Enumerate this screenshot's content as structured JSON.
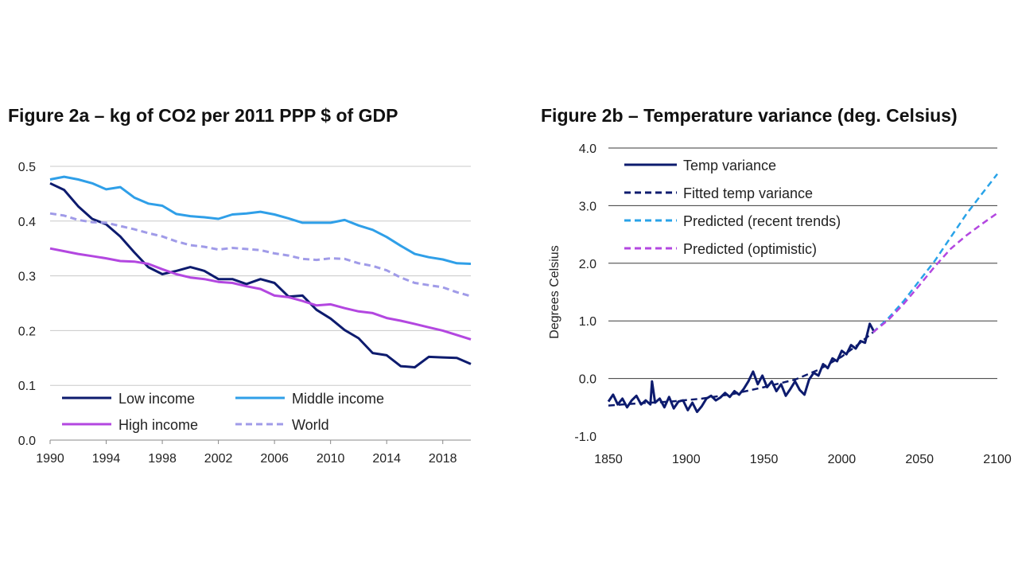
{
  "chart_data": [
    {
      "type": "line",
      "title": "Figure 2a – kg of CO2 per 2011 PPP $ of GDP",
      "xlabel": "",
      "ylabel": "",
      "xlim": [
        1990,
        2020
      ],
      "ylim": [
        0.0,
        0.5
      ],
      "x_ticks": [
        "1990",
        "1994",
        "1998",
        "2002",
        "2006",
        "2010",
        "2014",
        "2018"
      ],
      "y_ticks": [
        "0.0",
        "0.1",
        "0.2",
        "0.3",
        "0.4",
        "0.5"
      ],
      "grid": "horizontal",
      "legend_position": "bottom",
      "x": [
        1990,
        1991,
        1992,
        1993,
        1994,
        1995,
        1996,
        1997,
        1998,
        1999,
        2000,
        2001,
        2002,
        2003,
        2004,
        2005,
        2006,
        2007,
        2008,
        2009,
        2010,
        2011,
        2012,
        2013,
        2014,
        2015,
        2016,
        2017,
        2018,
        2019,
        2020
      ],
      "series": [
        {
          "name": "Low income",
          "color": "#0d1b6e",
          "dash": "solid",
          "values": [
            0.469,
            0.457,
            0.427,
            0.404,
            0.394,
            0.372,
            0.343,
            0.316,
            0.303,
            0.309,
            0.316,
            0.309,
            0.294,
            0.294,
            0.285,
            0.294,
            0.287,
            0.262,
            0.264,
            0.238,
            0.222,
            0.201,
            0.186,
            0.159,
            0.155,
            0.135,
            0.133,
            0.152,
            0.151,
            0.15,
            0.139
          ]
        },
        {
          "name": "Middle income",
          "color": "#2f9fe8",
          "dash": "solid",
          "values": [
            0.476,
            0.481,
            0.476,
            0.469,
            0.458,
            0.462,
            0.443,
            0.432,
            0.428,
            0.413,
            0.409,
            0.407,
            0.404,
            0.412,
            0.414,
            0.417,
            0.412,
            0.405,
            0.397,
            0.397,
            0.397,
            0.402,
            0.392,
            0.384,
            0.371,
            0.355,
            0.34,
            0.334,
            0.33,
            0.323,
            0.322
          ]
        },
        {
          "name": "High income",
          "color": "#b347e0",
          "dash": "solid",
          "values": [
            0.35,
            0.345,
            0.34,
            0.336,
            0.332,
            0.327,
            0.326,
            0.322,
            0.312,
            0.303,
            0.297,
            0.294,
            0.289,
            0.287,
            0.281,
            0.276,
            0.264,
            0.261,
            0.254,
            0.246,
            0.248,
            0.241,
            0.235,
            0.232,
            0.223,
            0.218,
            0.212,
            0.206,
            0.2,
            0.192,
            0.184
          ]
        },
        {
          "name": "World",
          "color": "#a09be8",
          "dash": "dashed",
          "values": [
            0.414,
            0.41,
            0.402,
            0.398,
            0.397,
            0.391,
            0.385,
            0.378,
            0.372,
            0.363,
            0.356,
            0.353,
            0.348,
            0.351,
            0.349,
            0.347,
            0.341,
            0.337,
            0.331,
            0.329,
            0.332,
            0.331,
            0.323,
            0.318,
            0.31,
            0.297,
            0.287,
            0.283,
            0.279,
            0.27,
            0.263
          ]
        }
      ]
    },
    {
      "type": "line",
      "title": "Figure 2b – Temperature variance (deg. Celsius)",
      "xlabel": "",
      "ylabel": "Degrees Celsius",
      "xlim": [
        1850,
        2100
      ],
      "ylim": [
        -1.0,
        4.0
      ],
      "x_ticks": [
        "1850",
        "1900",
        "1950",
        "2000",
        "2050",
        "2100"
      ],
      "y_ticks": [
        "-1.0",
        "0.0",
        "1.0",
        "2.0",
        "3.0",
        "4.0"
      ],
      "grid": "horizontal",
      "legend_position": "top-left",
      "series": [
        {
          "name": "Temp variance",
          "color": "#0d1b6e",
          "dash": "solid",
          "x": [
            1850,
            1853,
            1856,
            1859,
            1862,
            1865,
            1868,
            1871,
            1874,
            1877,
            1878,
            1880,
            1883,
            1886,
            1889,
            1892,
            1895,
            1898,
            1901,
            1904,
            1907,
            1910,
            1913,
            1916,
            1919,
            1922,
            1925,
            1928,
            1931,
            1934,
            1937,
            1940,
            1943,
            1946,
            1949,
            1952,
            1955,
            1958,
            1961,
            1964,
            1967,
            1970,
            1973,
            1976,
            1979,
            1982,
            1985,
            1988,
            1991,
            1994,
            1997,
            2000,
            2003,
            2006,
            2009,
            2012,
            2015,
            2018,
            2021
          ],
          "values": [
            -0.4,
            -0.28,
            -0.45,
            -0.35,
            -0.5,
            -0.38,
            -0.3,
            -0.45,
            -0.38,
            -0.45,
            -0.05,
            -0.42,
            -0.35,
            -0.5,
            -0.32,
            -0.52,
            -0.4,
            -0.38,
            -0.55,
            -0.42,
            -0.58,
            -0.48,
            -0.35,
            -0.3,
            -0.38,
            -0.33,
            -0.25,
            -0.32,
            -0.22,
            -0.28,
            -0.18,
            -0.05,
            0.12,
            -0.1,
            0.05,
            -0.15,
            -0.05,
            -0.22,
            -0.1,
            -0.3,
            -0.18,
            -0.05,
            -0.2,
            -0.28,
            -0.02,
            0.1,
            0.05,
            0.25,
            0.18,
            0.35,
            0.3,
            0.48,
            0.42,
            0.58,
            0.52,
            0.65,
            0.62,
            0.95,
            0.8
          ]
        },
        {
          "name": "Fitted temp variance",
          "color": "#0d1b6e",
          "dash": "dashed",
          "x": [
            1850,
            1870,
            1890,
            1910,
            1930,
            1950,
            1970,
            1985,
            2000,
            2010,
            2020
          ],
          "values": [
            -0.47,
            -0.43,
            -0.4,
            -0.35,
            -0.27,
            -0.15,
            -0.02,
            0.15,
            0.38,
            0.58,
            0.8
          ]
        },
        {
          "name": "Predicted (recent trends)",
          "color": "#29a3e8",
          "dash": "dashed",
          "x": [
            2020,
            2030,
            2040,
            2050,
            2060,
            2070,
            2080,
            2090,
            2100
          ],
          "values": [
            0.8,
            1.05,
            1.35,
            1.7,
            2.05,
            2.45,
            2.85,
            3.2,
            3.55
          ]
        },
        {
          "name": "Predicted (optimistic)",
          "color": "#b347e0",
          "dash": "dashed",
          "x": [
            2020,
            2030,
            2040,
            2050,
            2060,
            2070,
            2080,
            2090,
            2100
          ],
          "values": [
            0.8,
            1.02,
            1.3,
            1.62,
            1.95,
            2.25,
            2.48,
            2.68,
            2.87
          ]
        }
      ]
    }
  ]
}
